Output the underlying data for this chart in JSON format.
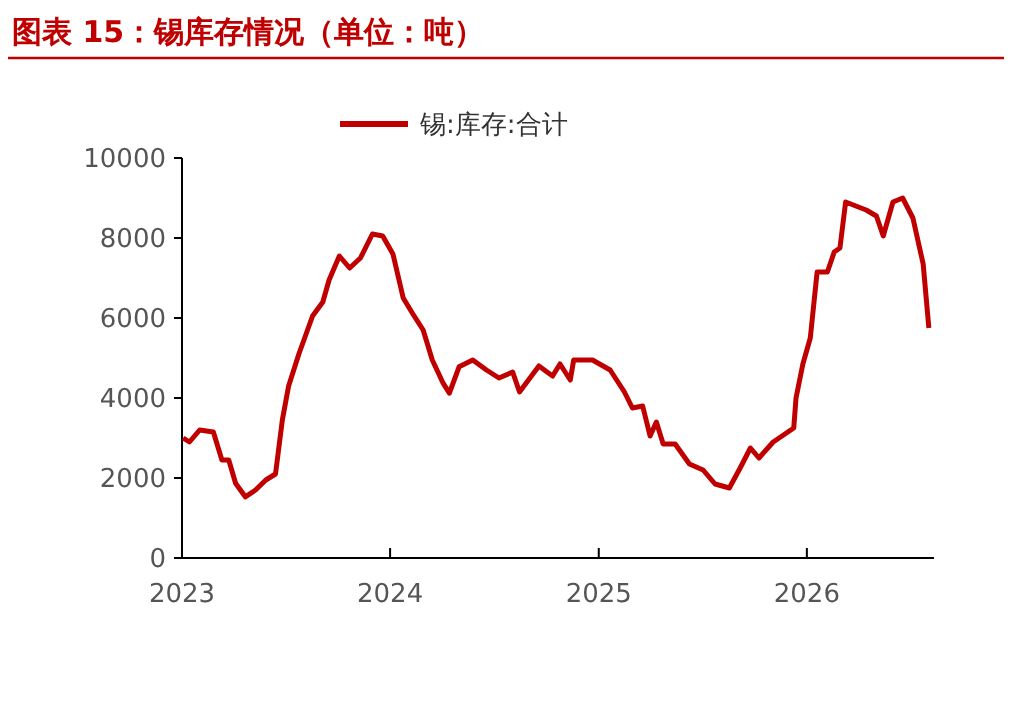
{
  "chart_data": {
    "type": "line",
    "title": "图表 15：锡库存情况（单位：吨）",
    "xlim": [
      "2023-01-01",
      "2026-08-12"
    ],
    "xticks": [
      {
        "value": "2023-01-01",
        "label": "2023"
      },
      {
        "value": "2024-01-01",
        "label": "2024"
      },
      {
        "value": "2025-01-01",
        "label": "2025"
      },
      {
        "value": "2026-01-01",
        "label": "2026"
      }
    ],
    "ylim": [
      0,
      10000
    ],
    "yticks": [
      0,
      2000,
      4000,
      6000,
      8000,
      10000
    ],
    "grid": false,
    "legend": "top",
    "marker": "none",
    "line_style": "solid",
    "series": [
      {
        "name": "锡:库存:合计",
        "color": "#c00000",
        "x": [
          "2023-01-03",
          "2023-01-14",
          "2023-02-01",
          "2023-02-25",
          "2023-03-12",
          "2023-03-24",
          "2023-04-05",
          "2023-04-22",
          "2023-05-10",
          "2023-05-28",
          "2023-06-14",
          "2023-06-26",
          "2023-07-07",
          "2023-07-25",
          "2023-08-18",
          "2023-09-05",
          "2023-09-16",
          "2023-10-04",
          "2023-10-22",
          "2023-11-10",
          "2023-12-01",
          "2023-12-19",
          "2024-01-06",
          "2024-01-24",
          "2024-02-10",
          "2024-02-28",
          "2024-03-15",
          "2024-04-03",
          "2024-04-14",
          "2024-05-01",
          "2024-05-25",
          "2024-06-18",
          "2024-07-10",
          "2024-08-03",
          "2024-08-15",
          "2024-09-18",
          "2024-10-12",
          "2024-10-25",
          "2024-11-12",
          "2024-11-18",
          "2024-12-21",
          "2025-01-21",
          "2025-02-15",
          "2025-03-01",
          "2025-03-19",
          "2025-04-01",
          "2025-04-12",
          "2025-04-24",
          "2025-05-15",
          "2025-06-09",
          "2025-07-03",
          "2025-07-24",
          "2025-08-18",
          "2025-09-06",
          "2025-09-24",
          "2025-10-09",
          "2025-11-03",
          "2025-12-09",
          "2025-12-13",
          "2025-12-25",
          "2026-01-07",
          "2026-01-19",
          "2026-02-06",
          "2026-02-18",
          "2026-02-28",
          "2026-03-10",
          "2026-03-28",
          "2026-04-15",
          "2026-05-03",
          "2026-05-15",
          "2026-06-01",
          "2026-06-18",
          "2026-07-06",
          "2026-07-24",
          "2026-08-03"
        ],
        "values": [
          3000,
          2900,
          3200,
          3150,
          2450,
          2450,
          1870,
          1530,
          1700,
          1950,
          2100,
          3450,
          4300,
          5100,
          6050,
          6400,
          6950,
          7550,
          7250,
          7500,
          8100,
          8050,
          7600,
          6500,
          6100,
          5700,
          4950,
          4370,
          4120,
          4780,
          4950,
          4700,
          4500,
          4650,
          4150,
          4800,
          4550,
          4850,
          4450,
          4950,
          4950,
          4700,
          4150,
          3750,
          3800,
          3050,
          3400,
          2850,
          2850,
          2350,
          2200,
          1850,
          1750,
          2250,
          2750,
          2500,
          2900,
          3250,
          4000,
          4850,
          5500,
          7150,
          7150,
          7650,
          7750,
          8900,
          8800,
          8700,
          8550,
          8050,
          8900,
          9000,
          8500,
          7350,
          5750
        ]
      }
    ]
  }
}
